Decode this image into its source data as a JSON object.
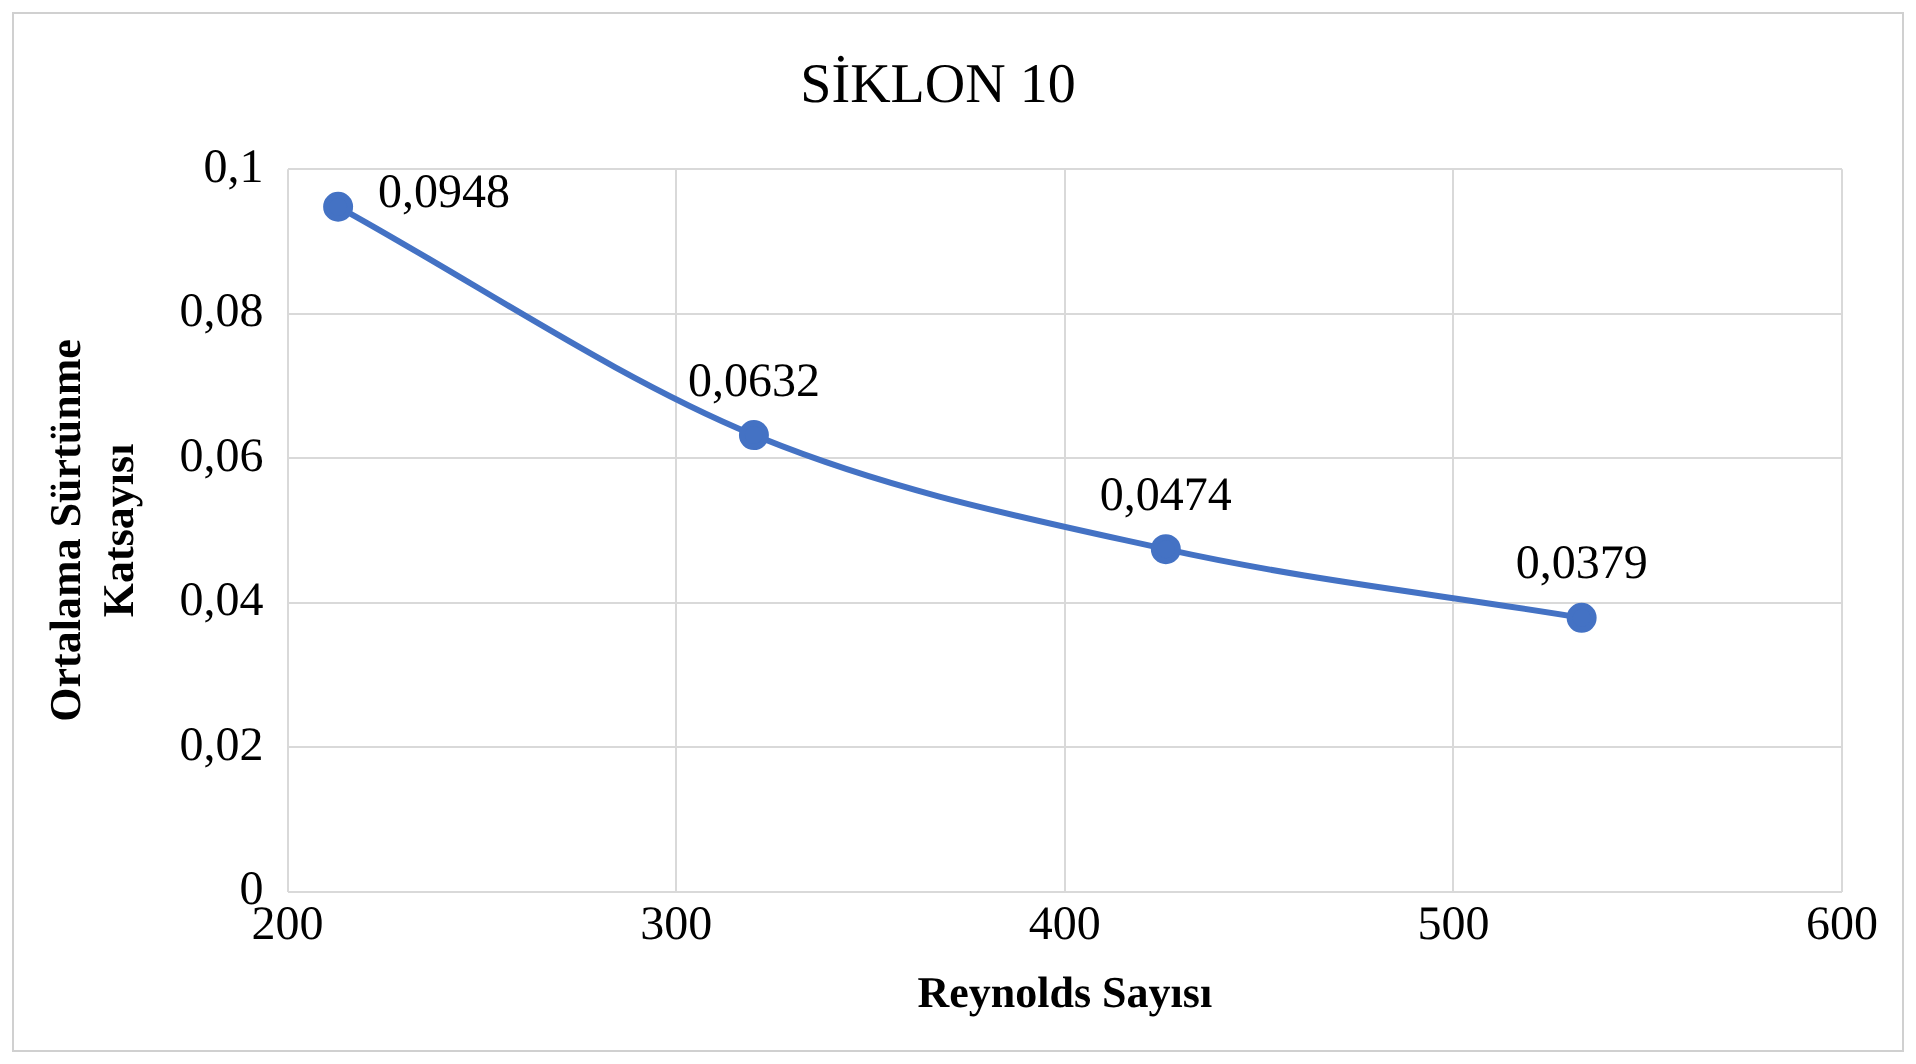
{
  "chart_data": {
    "type": "line",
    "title": "SİKLON 10",
    "xlabel": "Reynolds Sayısı",
    "ylabel": "Ortalama Sürtünme Katsayısı",
    "x": [
      213,
      320,
      426,
      533
    ],
    "series": [
      {
        "color": "#4472c4",
        "values": [
          0.0948,
          0.0632,
          0.0474,
          0.0379
        ],
        "value_labels": [
          "0,0948",
          "0,0632",
          "0,0474",
          "0,0379"
        ]
      }
    ],
    "xlim": [
      200,
      600
    ],
    "xticks": [
      200,
      300,
      400,
      500,
      600
    ],
    "ylim": [
      0,
      0.1
    ],
    "yticks": [
      {
        "value": 0,
        "label": "0"
      },
      {
        "value": 0.02,
        "label": "0,02"
      },
      {
        "value": 0.04,
        "label": "0,04"
      },
      {
        "value": 0.06,
        "label": "0,06"
      },
      {
        "value": 0.08,
        "label": "0,08"
      },
      {
        "value": 0.1,
        "label": "0,1"
      }
    ],
    "grid": true,
    "legend": false,
    "marker": "circle",
    "line_style": "solid"
  }
}
